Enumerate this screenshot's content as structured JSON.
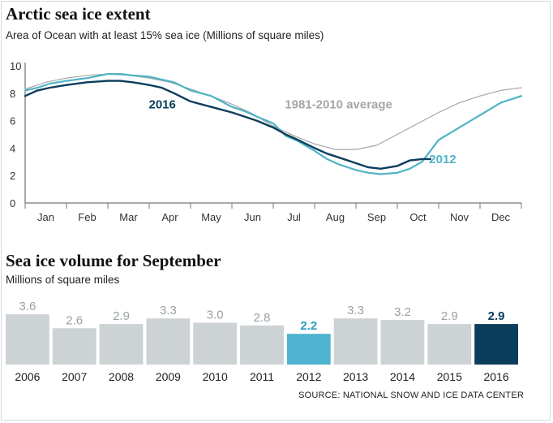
{
  "chart_data": [
    {
      "type": "line",
      "title": "Arctic sea ice extent",
      "subtitle": "Area of Ocean with at least 15% sea ice (Millions of square miles)",
      "ylim": [
        0,
        10
      ],
      "yticks": [
        0,
        2,
        4,
        6,
        8,
        10
      ],
      "grid": false,
      "x_months": [
        "Jan",
        "Feb",
        "Mar",
        "Apr",
        "May",
        "Jun",
        "Jul",
        "Aug",
        "Sep",
        "Oct",
        "Nov",
        "Dec"
      ],
      "series": [
        {
          "name": "1981-2010 average",
          "label": "1981-2010 average",
          "color": "#a6a6a6",
          "x": [
            0,
            0.5,
            1,
            1.5,
            2,
            2.5,
            3,
            3.5,
            4,
            4.5,
            5,
            5.5,
            6,
            6.5,
            7,
            7.5,
            8,
            8.5,
            9,
            9.5,
            10,
            10.5,
            11,
            11.5,
            12
          ],
          "values": [
            8.3,
            8.8,
            9.1,
            9.3,
            9.4,
            9.3,
            9.1,
            8.8,
            8.3,
            7.8,
            7.2,
            6.5,
            5.6,
            4.9,
            4.3,
            3.9,
            3.9,
            4.2,
            5.0,
            5.8,
            6.6,
            7.3,
            7.8,
            8.2,
            8.4
          ]
        },
        {
          "name": "2012",
          "label": "2012",
          "color": "#4fb3c6",
          "x": [
            0,
            0.3,
            0.6,
            1,
            1.5,
            2,
            2.3,
            2.6,
            3,
            3.3,
            3.6,
            4,
            4.5,
            5,
            5.3,
            5.6,
            6,
            6.3,
            6.6,
            7,
            7.3,
            7.6,
            8,
            8.3,
            8.6,
            9,
            9.3,
            9.6,
            10,
            10.5,
            11,
            11.5,
            12
          ],
          "values": [
            8.2,
            8.4,
            8.7,
            8.9,
            9.1,
            9.4,
            9.4,
            9.3,
            9.2,
            9.0,
            8.8,
            8.2,
            7.8,
            7.0,
            6.7,
            6.3,
            5.8,
            4.9,
            4.5,
            3.8,
            3.2,
            2.8,
            2.4,
            2.2,
            2.1,
            2.2,
            2.5,
            3.0,
            4.6,
            5.5,
            6.4,
            7.3,
            7.8
          ]
        },
        {
          "name": "2016",
          "label": "2016",
          "color": "#0b3d5c",
          "x": [
            0,
            0.3,
            0.6,
            1,
            1.5,
            2,
            2.3,
            2.6,
            3,
            3.3,
            3.6,
            4,
            4.5,
            5,
            5.3,
            5.6,
            6,
            6.3,
            6.6,
            7,
            7.3,
            7.6,
            8,
            8.3,
            8.6,
            9,
            9.3,
            9.6,
            9.8
          ],
          "values": [
            7.8,
            8.2,
            8.4,
            8.6,
            8.8,
            8.9,
            8.9,
            8.8,
            8.6,
            8.4,
            8.0,
            7.4,
            7.0,
            6.6,
            6.3,
            6.0,
            5.5,
            5.0,
            4.6,
            4.0,
            3.6,
            3.3,
            2.9,
            2.6,
            2.5,
            2.7,
            3.1,
            3.2,
            3.2
          ]
        }
      ]
    },
    {
      "type": "bar",
      "title": "Sea ice volume for September",
      "subtitle": "Millions of square miles",
      "categories": [
        "2006",
        "2007",
        "2008",
        "2009",
        "2010",
        "2011",
        "2012",
        "2013",
        "2014",
        "2015",
        "2016"
      ],
      "values": [
        3.6,
        2.6,
        2.9,
        3.3,
        3.0,
        2.8,
        2.2,
        3.3,
        3.2,
        2.9,
        2.9
      ],
      "value_labels": [
        "3.6",
        "2.6",
        "2.9",
        "3.3",
        "3.0",
        "2.8",
        "2.2",
        "3.3",
        "3.2",
        "2.9",
        "2.9"
      ],
      "colors": [
        "#cdd2d5",
        "#cdd2d5",
        "#cdd2d5",
        "#cdd2d5",
        "#cdd2d5",
        "#cdd2d5",
        "#4fb3d0",
        "#cdd2d5",
        "#cdd2d5",
        "#cdd2d5",
        "#0b3d5c"
      ],
      "label_colors": [
        "#9aa0a4",
        "#9aa0a4",
        "#9aa0a4",
        "#9aa0a4",
        "#9aa0a4",
        "#9aa0a4",
        "#2a9cbf",
        "#9aa0a4",
        "#9aa0a4",
        "#9aa0a4",
        "#0b3d5c"
      ],
      "source": "SOURCE: NATIONAL SNOW AND ICE DATA CENTER"
    }
  ]
}
